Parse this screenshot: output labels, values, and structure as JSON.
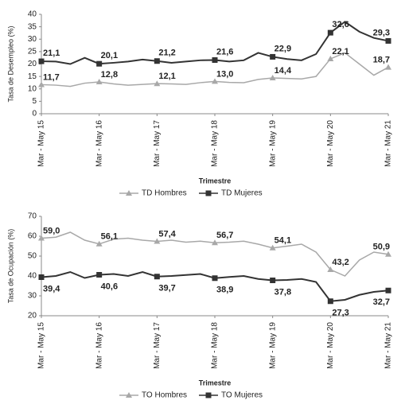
{
  "chart_data": [
    {
      "type": "line",
      "y_label": "Tasa de Desempleo (%)",
      "x_label": "Trimestre",
      "categories": [
        "Mar - May 15",
        null,
        null,
        null,
        "Mar - May 16",
        null,
        null,
        null,
        "Mar - May 17",
        null,
        null,
        null,
        "Mar - May 18",
        null,
        null,
        null,
        "Mar - May 19",
        null,
        null,
        null,
        "Mar - May 20",
        null,
        null,
        null,
        "Mar - May 21"
      ],
      "ylim": [
        0,
        40
      ],
      "yticks": [
        0,
        5,
        10,
        15,
        20,
        25,
        30,
        35,
        40
      ],
      "series": [
        {
          "name": "TD Hombres",
          "color": "#a8a8a8",
          "marker": "triangle",
          "values": [
            11.7,
            11.5,
            11.0,
            12.3,
            12.8,
            12.0,
            11.5,
            11.8,
            12.1,
            12.0,
            11.8,
            12.5,
            13.0,
            12.6,
            12.5,
            13.8,
            14.4,
            14.2,
            14.0,
            15.0,
            22.1,
            24.5,
            20.0,
            15.5,
            18.7
          ],
          "value_labels": [
            "11,7",
            null,
            null,
            null,
            "12,8",
            null,
            null,
            null,
            "12,1",
            null,
            null,
            null,
            "13,0",
            null,
            null,
            null,
            "14,4",
            null,
            null,
            null,
            "22,1",
            null,
            null,
            null,
            "18,7"
          ]
        },
        {
          "name": "TD Mujeres",
          "color": "#333333",
          "marker": "square",
          "values": [
            21.1,
            21.0,
            20.0,
            22.5,
            20.1,
            20.5,
            21.0,
            21.8,
            21.2,
            20.5,
            21.0,
            21.5,
            21.6,
            21.0,
            21.5,
            24.5,
            22.9,
            22.0,
            21.5,
            24.0,
            32.6,
            37.0,
            33.0,
            30.5,
            29.3
          ],
          "value_labels": [
            "21,1",
            null,
            null,
            null,
            "20,1",
            null,
            null,
            null,
            "21,2",
            null,
            null,
            null,
            "21,6",
            null,
            null,
            null,
            "22,9",
            null,
            null,
            null,
            "32,6",
            null,
            null,
            null,
            "29,3"
          ]
        }
      ]
    },
    {
      "type": "line",
      "y_label": "Tasa de Ocupación (%)",
      "x_label": "Trimestre",
      "categories": [
        "Mar - May 15",
        null,
        null,
        null,
        "Mar - May 16",
        null,
        null,
        null,
        "Mar - May 17",
        null,
        null,
        null,
        "Mar - May 18",
        null,
        null,
        null,
        "Mar - May 19",
        null,
        null,
        null,
        "Mar - May 20",
        null,
        null,
        null,
        "Mar - May 21"
      ],
      "ylim": [
        20,
        70
      ],
      "yticks": [
        20,
        30,
        40,
        50,
        60,
        70
      ],
      "series": [
        {
          "name": "TO Hombres",
          "color": "#a8a8a8",
          "marker": "triangle",
          "values": [
            59.0,
            59.5,
            62.0,
            58.0,
            56.1,
            58.5,
            59.0,
            58.0,
            57.4,
            58.0,
            57.0,
            57.5,
            56.7,
            57.0,
            57.5,
            56.0,
            54.1,
            55.0,
            56.0,
            52.0,
            43.2,
            40.0,
            48.0,
            52.0,
            50.9
          ],
          "value_labels": [
            "59,0",
            null,
            null,
            null,
            "56,1",
            null,
            null,
            null,
            "57,4",
            null,
            null,
            null,
            "56,7",
            null,
            null,
            null,
            "54,1",
            null,
            null,
            null,
            "43,2",
            null,
            null,
            null,
            "50,9"
          ]
        },
        {
          "name": "TO Mujeres",
          "color": "#333333",
          "marker": "square",
          "values": [
            39.4,
            40.0,
            42.0,
            39.0,
            40.6,
            41.0,
            40.0,
            42.0,
            39.7,
            40.0,
            40.5,
            41.0,
            38.9,
            39.5,
            40.0,
            38.5,
            37.8,
            38.0,
            38.5,
            37.0,
            27.3,
            28.0,
            30.5,
            32.0,
            32.7
          ],
          "value_labels": [
            "39,4",
            null,
            null,
            null,
            "40,6",
            null,
            null,
            null,
            "39,7",
            null,
            null,
            null,
            "38,9",
            null,
            null,
            null,
            "37,8",
            null,
            null,
            null,
            "27,3",
            null,
            null,
            null,
            "32,7"
          ]
        }
      ]
    }
  ]
}
